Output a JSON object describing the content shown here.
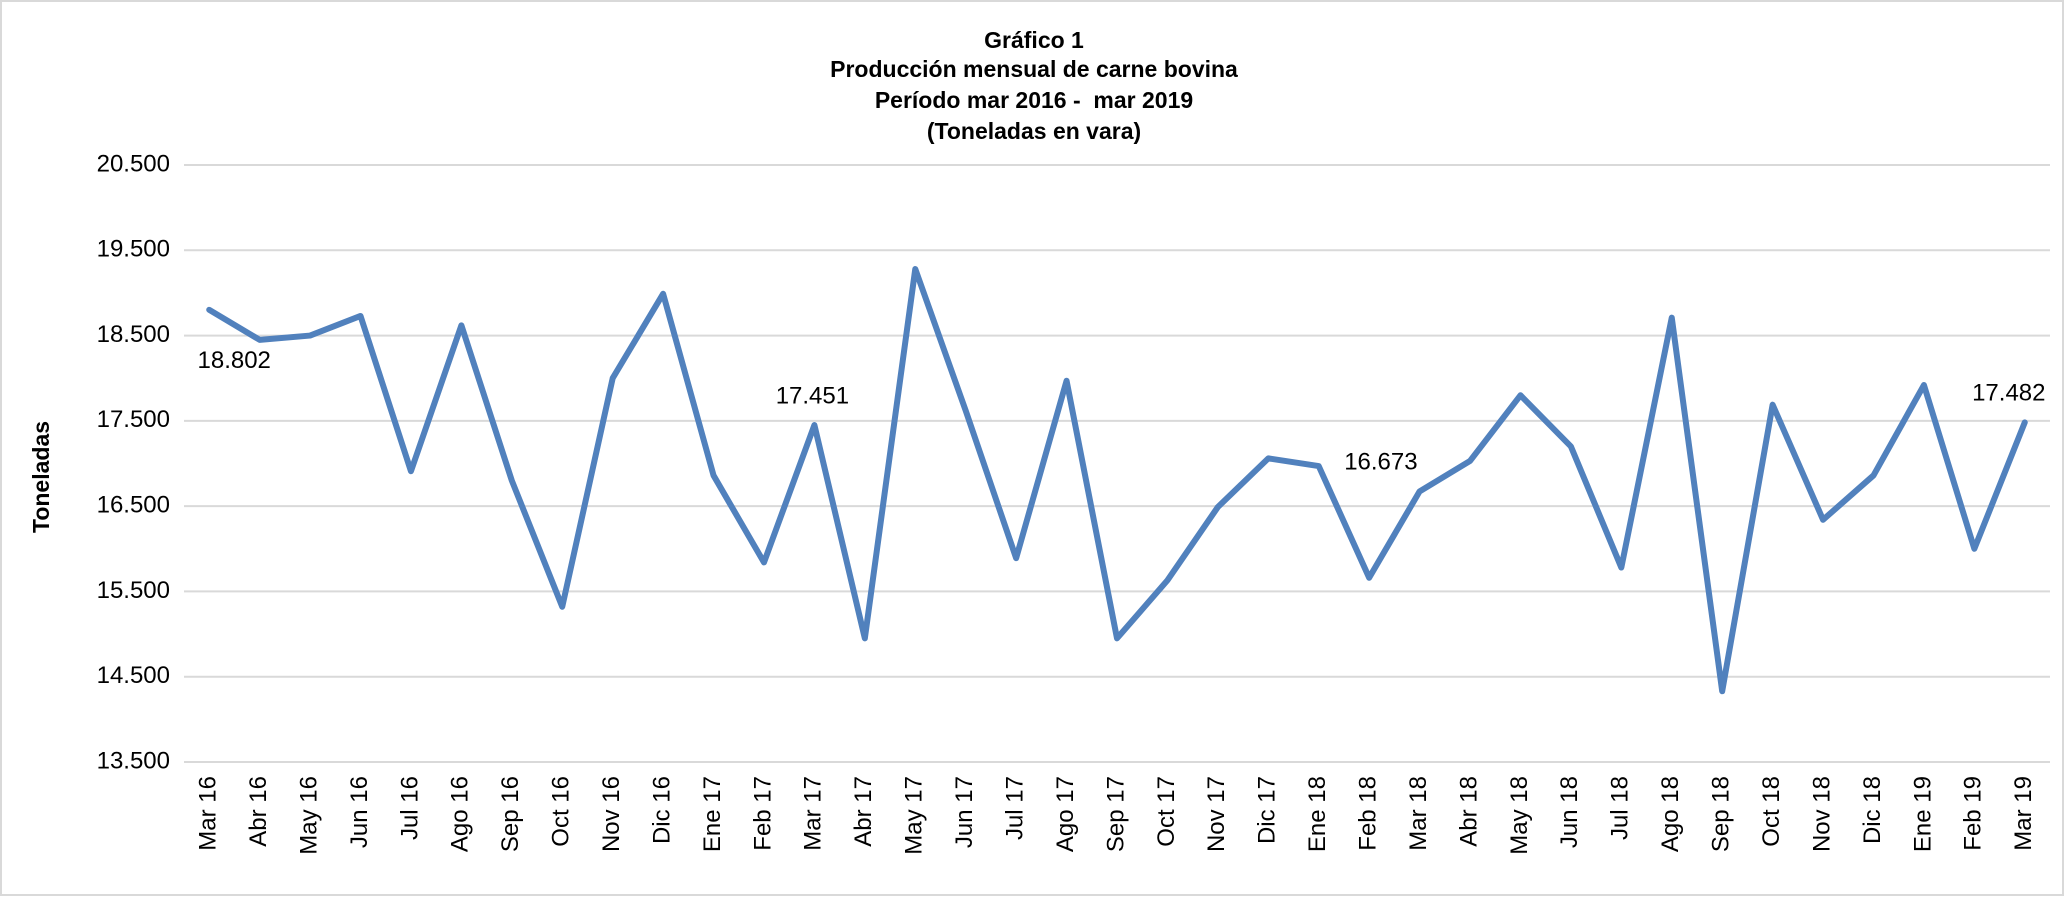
{
  "chart_data": {
    "type": "line",
    "title": "Gráfico 1",
    "subtitle": [
      "Producción mensual de carne bovina",
      "Período mar 2016 -  mar 2019",
      "(Toneladas en vara)"
    ],
    "y_label": "Toneladas",
    "categories": [
      "Mar 16",
      "Abr 16",
      "May 16",
      "Jun 16",
      "Jul 16",
      "Ago 16",
      "Sep 16",
      "Oct 16",
      "Nov 16",
      "Dic 16",
      "Ene 17",
      "Feb 17",
      "Mar 17",
      "Abr 17",
      "May 17",
      "Jun 17",
      "Jul 17",
      "Ago 17",
      "Sep 17",
      "Oct 17",
      "Nov 17",
      "Dic 17",
      "Ene 18",
      "Feb 18",
      "Mar 18",
      "Abr 18",
      "May 18",
      "Jun 18",
      "Jul 18",
      "Ago 18",
      "Sep 18",
      "Oct 18",
      "Nov 18",
      "Dic 18",
      "Ene 19",
      "Feb 19",
      "Mar 19"
    ],
    "values": [
      18802,
      18450,
      18500,
      18730,
      16910,
      18620,
      16800,
      15320,
      18000,
      18990,
      16860,
      15840,
      17451,
      14950,
      19280,
      17620,
      15890,
      17970,
      14950,
      15630,
      16490,
      17060,
      16970,
      15660,
      16673,
      17030,
      17800,
      17200,
      15780,
      18710,
      14330,
      17690,
      16340,
      16860,
      17920,
      16000,
      17482
    ],
    "value_labels": [
      "18.802",
      null,
      null,
      null,
      null,
      null,
      null,
      null,
      null,
      null,
      null,
      null,
      "17.451",
      null,
      null,
      null,
      null,
      null,
      null,
      null,
      null,
      null,
      null,
      null,
      "16.673",
      null,
      null,
      null,
      null,
      null,
      null,
      null,
      null,
      null,
      null,
      null,
      "17.482"
    ],
    "color": "#5181bd",
    "ylim": [
      13500,
      20500
    ],
    "yticks": [
      {
        "value": 13500,
        "label": "13.500"
      },
      {
        "value": 14500,
        "label": "14.500"
      },
      {
        "value": 15500,
        "label": "15.500"
      },
      {
        "value": 16500,
        "label": "16.500"
      },
      {
        "value": 17500,
        "label": "17.500"
      },
      {
        "value": 18500,
        "label": "18.500"
      },
      {
        "value": 19500,
        "label": "19.500"
      },
      {
        "value": 20500,
        "label": "20.500"
      }
    ],
    "grid": true
  }
}
